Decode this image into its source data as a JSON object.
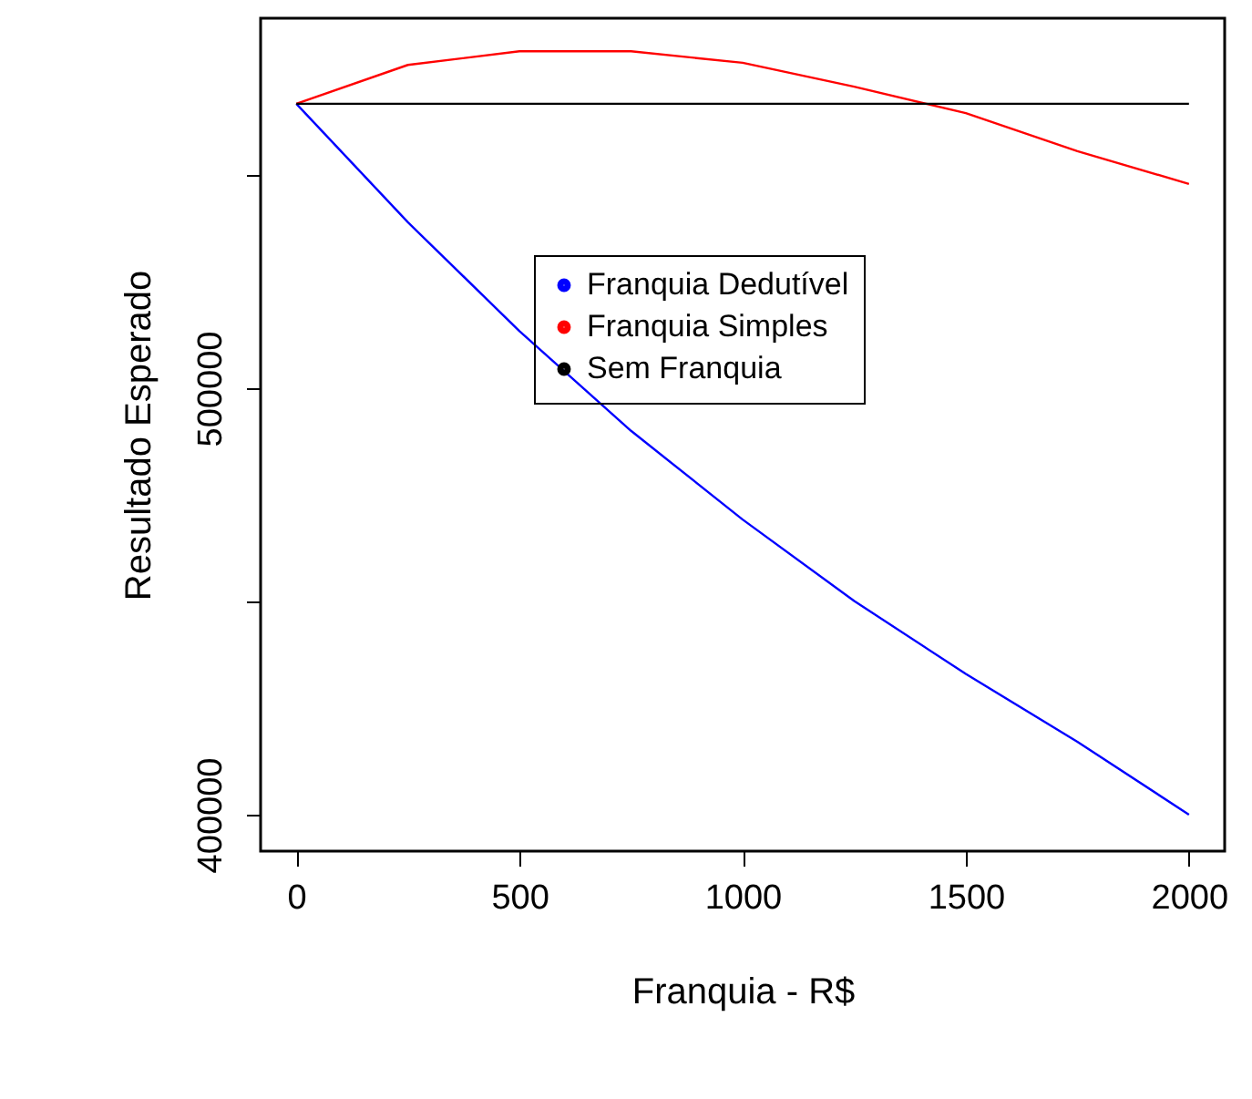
{
  "chart_data": {
    "type": "line",
    "xlabel": "Franquia - R$",
    "ylabel": "Resultado Esperado",
    "x": [
      0,
      250,
      500,
      750,
      1000,
      1250,
      1500,
      1750,
      2000
    ],
    "series": [
      {
        "name": "Franquia Dedutível",
        "color": "#0000ff",
        "values": [
          566700,
          538900,
          513400,
          490000,
          469200,
          450100,
          433000,
          417100,
          400000
        ]
      },
      {
        "name": "Franquia Simples",
        "color": "#ff0000",
        "values": [
          566700,
          575800,
          579000,
          579000,
          576300,
          570700,
          564500,
          555600,
          547900
        ]
      },
      {
        "name": "Sem Franquia",
        "color": "#000000",
        "values": [
          566700,
          566700,
          566700,
          566700,
          566700,
          566700,
          566700,
          566700,
          566700
        ]
      }
    ],
    "xlim": [
      -80,
      2080
    ],
    "xticks": [
      0,
      500,
      1000,
      1500,
      2000
    ],
    "ylim": [
      391450,
      586750
    ],
    "yticks": [
      400000,
      {
        "value": 450000,
        "label": null
      },
      500000,
      {
        "value": 550000,
        "label": null
      }
    ],
    "grid": false,
    "legend": "right",
    "marker": "none",
    "line_style": "solid"
  }
}
